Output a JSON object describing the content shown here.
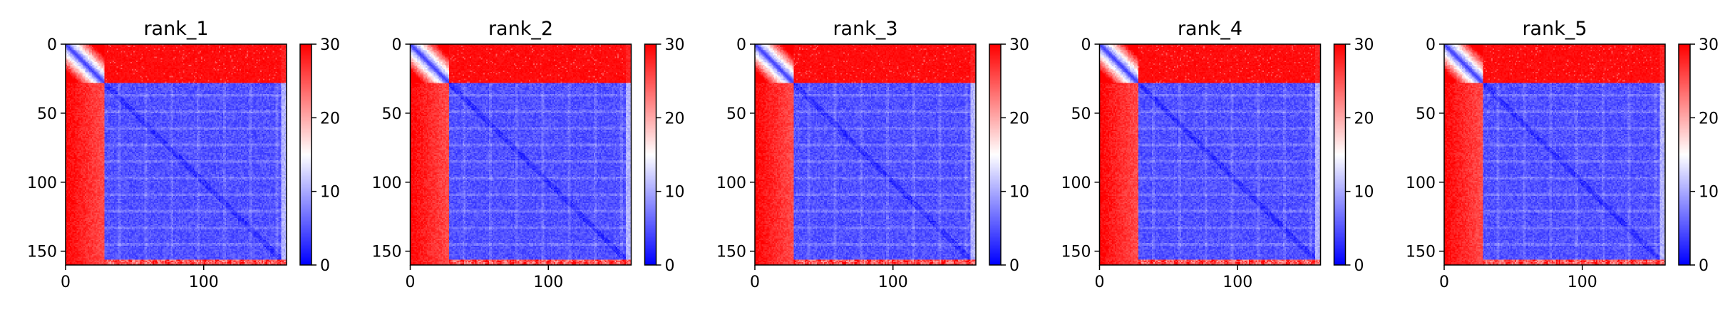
{
  "colors": {
    "low": "#0000ff",
    "mid": "#ffffff",
    "high": "#ff0000",
    "axis": "#000000",
    "background": "#ffffff"
  },
  "chart_data": [
    {
      "type": "heatmap",
      "title": "rank_1",
      "xlabel": "",
      "ylabel": "",
      "size": 160,
      "xlim": [
        0,
        160
      ],
      "ylim": [
        160,
        0
      ],
      "x_ticks": [
        0,
        100
      ],
      "y_ticks": [
        0,
        50,
        100,
        150
      ],
      "colorbar": {
        "range": [
          0,
          30
        ],
        "ticks": [
          0,
          10,
          20,
          30
        ],
        "colormap": "bwr"
      },
      "structure": {
        "flexible_region_end": 28,
        "c_terminal_tail_start": 156,
        "near_distance": 3,
        "far_distance": 30,
        "tail_to_core_distance": 28
      },
      "image_origin": "top-left",
      "grid": false
    },
    {
      "type": "heatmap",
      "title": "rank_2",
      "xlabel": "",
      "ylabel": "",
      "size": 160,
      "xlim": [
        0,
        160
      ],
      "ylim": [
        160,
        0
      ],
      "x_ticks": [
        0,
        100
      ],
      "y_ticks": [
        0,
        50,
        100,
        150
      ],
      "colorbar": {
        "range": [
          0,
          30
        ],
        "ticks": [
          0,
          10,
          20,
          30
        ],
        "colormap": "bwr"
      },
      "structure": {
        "flexible_region_end": 28,
        "c_terminal_tail_start": 156,
        "near_distance": 3,
        "far_distance": 30,
        "tail_to_core_distance": 28
      },
      "image_origin": "top-left",
      "grid": false
    },
    {
      "type": "heatmap",
      "title": "rank_3",
      "xlabel": "",
      "ylabel": "",
      "size": 160,
      "xlim": [
        0,
        160
      ],
      "ylim": [
        160,
        0
      ],
      "x_ticks": [
        0,
        100
      ],
      "y_ticks": [
        0,
        50,
        100,
        150
      ],
      "colorbar": {
        "range": [
          0,
          30
        ],
        "ticks": [
          0,
          10,
          20,
          30
        ],
        "colormap": "bwr"
      },
      "structure": {
        "flexible_region_end": 28,
        "c_terminal_tail_start": 156,
        "near_distance": 3,
        "far_distance": 30,
        "tail_to_core_distance": 28
      },
      "image_origin": "top-left",
      "grid": false
    },
    {
      "type": "heatmap",
      "title": "rank_4",
      "xlabel": "",
      "ylabel": "",
      "size": 160,
      "xlim": [
        0,
        160
      ],
      "ylim": [
        160,
        0
      ],
      "x_ticks": [
        0,
        100
      ],
      "y_ticks": [
        0,
        50,
        100,
        150
      ],
      "colorbar": {
        "range": [
          0,
          30
        ],
        "ticks": [
          0,
          10,
          20,
          30
        ],
        "colormap": "bwr"
      },
      "structure": {
        "flexible_region_end": 28,
        "c_terminal_tail_start": 156,
        "near_distance": 3,
        "far_distance": 30,
        "tail_to_core_distance": 28
      },
      "image_origin": "top-left",
      "grid": false
    },
    {
      "type": "heatmap",
      "title": "rank_5",
      "xlabel": "",
      "ylabel": "",
      "size": 160,
      "xlim": [
        0,
        160
      ],
      "ylim": [
        160,
        0
      ],
      "x_ticks": [
        0,
        100
      ],
      "y_ticks": [
        0,
        50,
        100,
        150
      ],
      "colorbar": {
        "range": [
          0,
          30
        ],
        "ticks": [
          0,
          10,
          20,
          30
        ],
        "colormap": "bwr"
      },
      "structure": {
        "flexible_region_end": 28,
        "c_terminal_tail_start": 156,
        "near_distance": 3,
        "far_distance": 30,
        "tail_to_core_distance": 28
      },
      "image_origin": "top-left",
      "grid": false
    }
  ]
}
